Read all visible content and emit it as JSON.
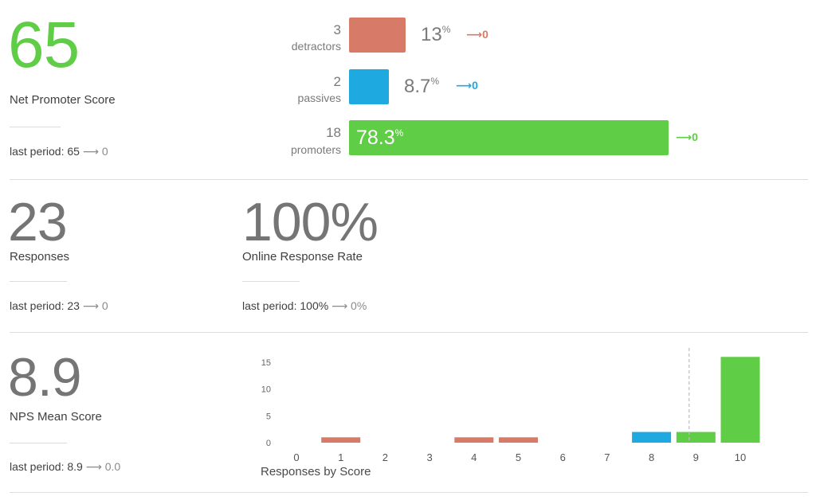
{
  "nps": {
    "score": "65",
    "label": "Net Promoter Score",
    "last_period_label": "last period: 65",
    "last_period_arrow": "⟶",
    "last_period_change": "0",
    "categories": [
      {
        "key": "detractors",
        "count": "3",
        "name": "detractors",
        "percent": "13",
        "pct_unit": "%",
        "fraction": 0.13,
        "color": "#d77a67",
        "delta_arrow": "⟶",
        "delta": "0"
      },
      {
        "key": "passives",
        "count": "2",
        "name": "passives",
        "percent": "8.7",
        "pct_unit": "%",
        "fraction": 0.087,
        "color": "#1ea9e0",
        "delta_arrow": "⟶",
        "delta": "0"
      },
      {
        "key": "promoters",
        "count": "18",
        "name": "promoters",
        "percent": "78.3",
        "pct_unit": "%",
        "fraction": 0.783,
        "color": "#5fcd45",
        "delta_arrow": "⟶",
        "delta": "0"
      }
    ]
  },
  "responses": {
    "value": "23",
    "label": "Responses",
    "last_period_label": "last period: 23",
    "last_period_arrow": "⟶",
    "last_period_change": "0"
  },
  "online_rate": {
    "value": "100%",
    "label": "Online Response Rate",
    "last_period_label": "last period: 100%",
    "last_period_arrow": "⟶",
    "last_period_change": "0%"
  },
  "mean": {
    "value": "8.9",
    "label": "NPS Mean Score",
    "last_period_label": "last period: 8.9",
    "last_period_arrow": "⟶",
    "last_period_change": "0.0"
  },
  "colors": {
    "detractor": "#d77a67",
    "passive": "#1ea9e0",
    "promoter": "#5fcd45"
  },
  "chart_data": {
    "type": "bar",
    "title": "Responses by Score",
    "xlabel": "Responses by Score",
    "ylabel": "",
    "categories": [
      "0",
      "1",
      "2",
      "3",
      "4",
      "5",
      "6",
      "7",
      "8",
      "9",
      "10"
    ],
    "values": [
      0,
      1,
      0,
      0,
      1,
      1,
      0,
      0,
      2,
      2,
      16
    ],
    "bar_colors": [
      "#d77a67",
      "#d77a67",
      "#d77a67",
      "#d77a67",
      "#d77a67",
      "#d77a67",
      "#d77a67",
      "#1ea9e0",
      "#1ea9e0",
      "#5fcd45",
      "#5fcd45"
    ],
    "yticks": [
      "0",
      "5",
      "10",
      "15"
    ],
    "ylim": [
      0,
      16
    ],
    "mean_marker": 8.9,
    "grid": false,
    "legend": "none"
  }
}
